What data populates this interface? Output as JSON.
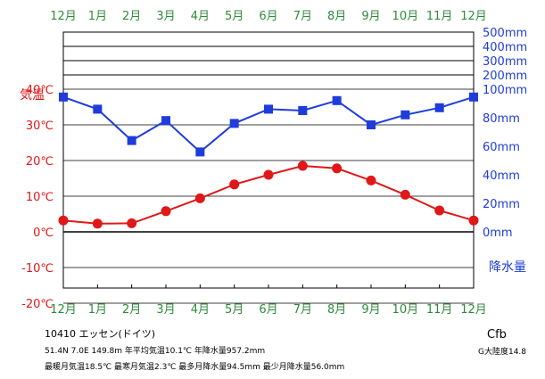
{
  "chart_data": {
    "type": "line",
    "months": [
      "12月",
      "1月",
      "2月",
      "3月",
      "4月",
      "5月",
      "6月",
      "7月",
      "8月",
      "9月",
      "10月",
      "11月",
      "12月"
    ],
    "series": [
      {
        "values": [
          3.2,
          2.3,
          2.4,
          5.8,
          9.4,
          13.3,
          16.0,
          18.5,
          17.8,
          14.4,
          10.4,
          6.0,
          3.2
        ],
        "color": "#e01818",
        "marker": "circle",
        "axis": "left"
      },
      {
        "values": [
          94.5,
          86.0,
          64.0,
          78.0,
          56.0,
          76.0,
          86.0,
          85.0,
          92.0,
          75.0,
          82.0,
          87.0,
          94.5
        ],
        "color": "#1e3cdc",
        "marker": "square",
        "axis": "right"
      }
    ],
    "temp_axis": {
      "title": "気温",
      "ticks": [
        "40℃",
        "30℃",
        "20℃",
        "10℃",
        "0℃",
        "-10℃",
        "-20℃"
      ],
      "ylim": [
        -20,
        40
      ]
    },
    "precip_axis": {
      "title": "降水量",
      "ticks_linear": [
        "100mm",
        "80mm",
        "60mm",
        "40mm",
        "20mm",
        "0mm"
      ],
      "ticks_compressed": [
        "500mm",
        "400mm",
        "300mm",
        "200mm"
      ],
      "ylim": [
        0,
        100
      ],
      "note": "above 100mm the scale is compressed; 100mm per band"
    },
    "grid": true,
    "zero_line": true
  },
  "station": {
    "line1": "10410  エッセン(ドイツ)",
    "line2": "51.4N  7.0E  149.8m 年平均気温10.1℃ 年降水量957.2mm",
    "line3": "最暖月気温18.5℃ 最寒月気温2.3℃ 最多月降水量94.5mm 最少月降水量56.0mm",
    "climate_code": "Cfb",
    "continentality": "G大陸度14.8"
  }
}
